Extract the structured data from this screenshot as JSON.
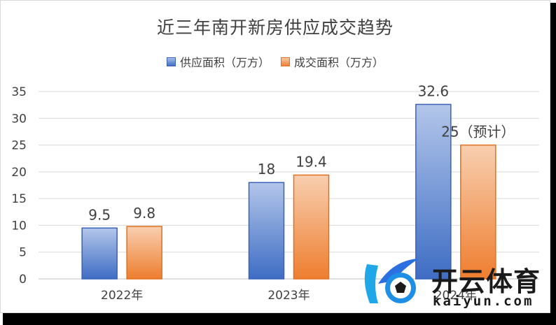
{
  "chart_data": {
    "type": "bar",
    "title": "近三年南开新房供应成交趋势",
    "categories": [
      "2022年",
      "2023年",
      "2024年"
    ],
    "series": [
      {
        "name": "供应面积（万方）",
        "values": [
          9.5,
          18,
          32.6
        ],
        "labels": [
          "9.5",
          "18",
          "32.6"
        ],
        "color": "#4472C4"
      },
      {
        "name": "成交面积（万方）",
        "values": [
          9.8,
          19.4,
          25
        ],
        "labels": [
          "9.8",
          "19.4",
          "25（预计）"
        ],
        "color": "#ED7D31"
      }
    ],
    "yticks": [
      "0",
      "5",
      "10",
      "15",
      "20",
      "25",
      "30",
      "35"
    ],
    "ylim": [
      0,
      35
    ],
    "grid": true,
    "legend_position": "top"
  },
  "watermark": {
    "text_cn": "开云体育",
    "text_en": "kaiyun.com"
  }
}
